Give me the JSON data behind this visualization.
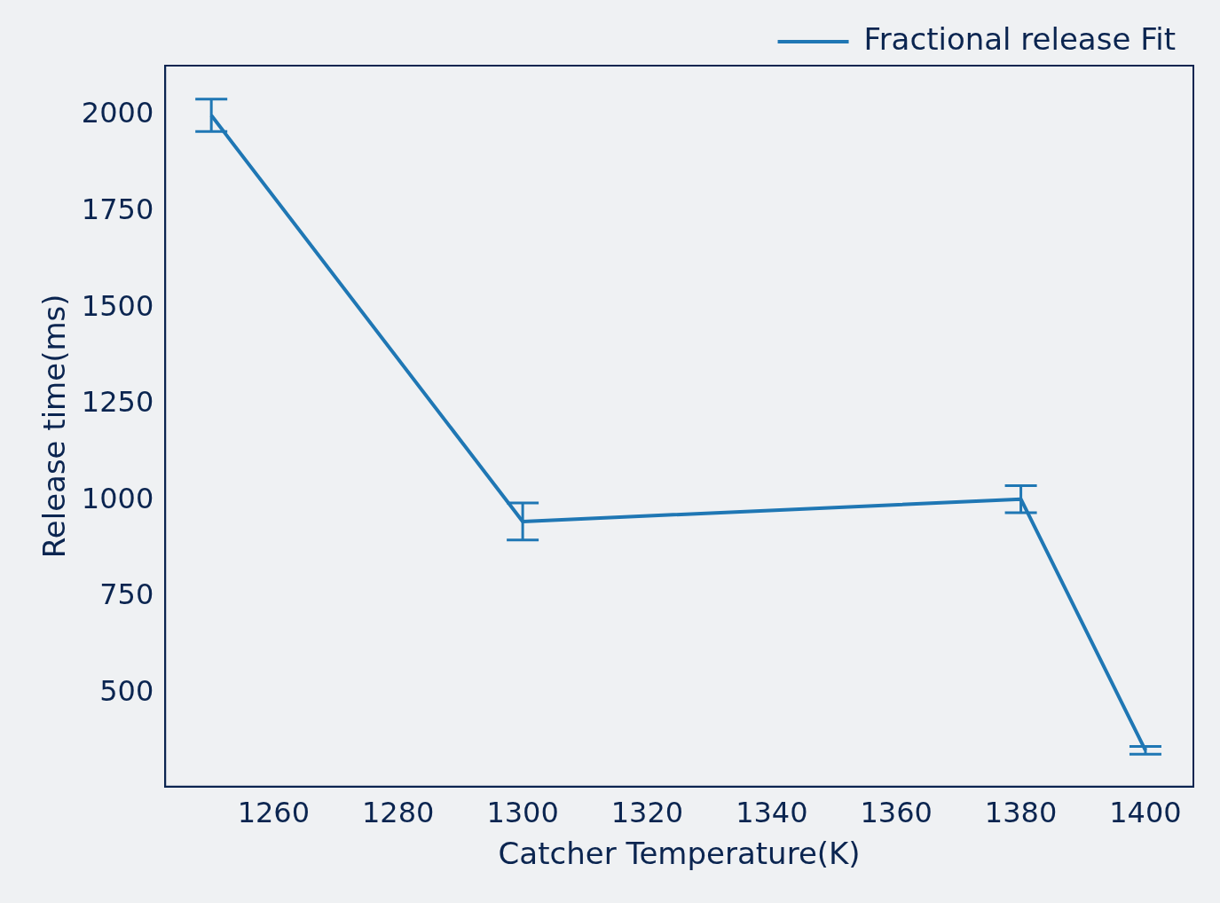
{
  "chart_data": {
    "type": "line",
    "xlabel": "Catcher Temperature(K)",
    "ylabel": "Release time(ms)",
    "x": [
      1250,
      1300,
      1380,
      1400
    ],
    "series": [
      {
        "name": "Fractional release Fit",
        "color": "#1f77b4",
        "values": [
          2000,
          946,
          1004,
          352
        ],
        "errors": [
          42,
          48,
          35,
          10
        ]
      }
    ],
    "xlim": [
      1242.6,
      1407.7
    ],
    "xticks": [
      1260,
      1280,
      1300,
      1320,
      1340,
      1360,
      1380,
      1400
    ],
    "ylim": [
      258,
      2129
    ],
    "yticks": [
      500,
      750,
      1000,
      1250,
      1500,
      1750,
      2000
    ],
    "grid": false,
    "legend": "top right",
    "marker": "none",
    "line_style": "solid"
  }
}
